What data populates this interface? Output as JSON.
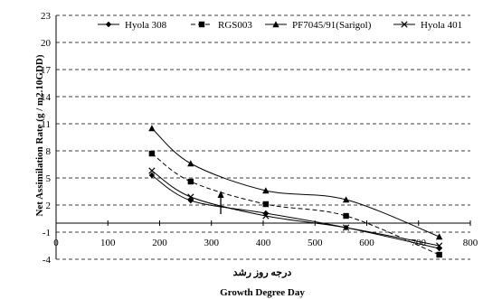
{
  "chart_data": {
    "type": "line",
    "xlabel_fa": "درجه روز رشد",
    "xlabel": "Growth Degree Day",
    "ylabel": "Net Assimilation Rate (g / m2.10GDD)",
    "xlim": [
      0,
      800
    ],
    "ylim": [
      -4,
      23
    ],
    "x_ticks": [
      0,
      100,
      200,
      300,
      400,
      500,
      600,
      700,
      800
    ],
    "y_ticks": [
      -4,
      -1,
      2,
      5,
      8,
      11,
      14,
      17,
      20,
      23
    ],
    "grid": "horizontal-dashed",
    "legend_position": "top",
    "series": [
      {
        "name": "Hyola 308",
        "marker": "diamond",
        "dash": "solid",
        "x": [
          185,
          260,
          405,
          560,
          740
        ],
        "y": [
          5.3,
          2.5,
          1.1,
          -0.5,
          -2.8
        ]
      },
      {
        "name": "RGS003",
        "marker": "square",
        "dash": "dashed",
        "x": [
          185,
          260,
          405,
          560,
          740
        ],
        "y": [
          7.7,
          4.6,
          2.1,
          0.8,
          -3.5
        ]
      },
      {
        "name": "PF7045/91(Sarigol)",
        "marker": "triangle",
        "dash": "solid",
        "x": [
          185,
          260,
          405,
          560,
          740
        ],
        "y": [
          10.5,
          6.6,
          3.6,
          2.6,
          -1.5
        ]
      },
      {
        "name": "Hyola 401",
        "marker": "x",
        "dash": "solid",
        "x": [
          185,
          260,
          405,
          560,
          740
        ],
        "y": [
          5.8,
          2.9,
          0.8,
          -0.5,
          -2.5
        ]
      }
    ],
    "annotation": {
      "type": "arrow",
      "x": 318,
      "y_from": 1.0,
      "y_to": 3.2
    }
  }
}
